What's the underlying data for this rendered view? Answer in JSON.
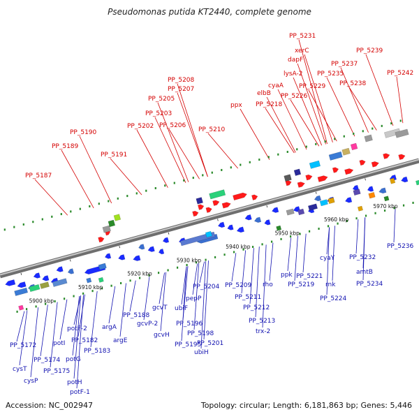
{
  "title": "Pseudomonas putida KT2440, complete genome",
  "footer": {
    "accession": "Accession: NC_002947",
    "topology": "Topology: circular; Length: 6,181,863 bp; Genes: 5,446"
  },
  "colors": {
    "forward_label": "#d40000",
    "reverse_label": "#1010b0",
    "backbone": "#8a8a8a",
    "forward_arrow": "#ff1a1a",
    "reverse_arrow": "#1a2bff",
    "tick": "#2a8a2a"
  },
  "ticks": [
    {
      "label": "5900 kbp"
    },
    {
      "label": "5910 kbp"
    },
    {
      "label": "5920 kbp"
    },
    {
      "label": "5930 kbp"
    },
    {
      "label": "5940 kbp"
    },
    {
      "label": "5950 kbp"
    },
    {
      "label": "5960 kbp"
    },
    {
      "label": "5970 kbp"
    }
  ],
  "forward_genes": [
    "PP_5187",
    "PP_5189",
    "PP_5190",
    "PP_5191",
    "PP_5202",
    "PP_5203",
    "PP_5205",
    "PP_5206",
    "PP_5207",
    "PP_5208",
    "PP_5210",
    "ppx",
    "PP_5218",
    "elbB",
    "cyaA",
    "lysA-2",
    "dapF",
    "xerC",
    "PP_5231",
    "PP_5226",
    "PP_5229",
    "PP_5235",
    "PP_5237",
    "PP_5238",
    "PP_5239",
    "PP_5242"
  ],
  "reverse_genes": [
    "PP_5172",
    "cysT",
    "cysP",
    "PP_5174",
    "PP_5175",
    "potI",
    "potG",
    "potH",
    "potF-2",
    "potF-1",
    "PP_5182",
    "PP_5183",
    "argA",
    "argE",
    "PP_5188",
    "gcvP-2",
    "gcvH",
    "gcvT",
    "PP_5195",
    "PP_5196",
    "ubiF",
    "PP_5198",
    "ubiH",
    "PP_5201",
    "pepP",
    "PP_5204",
    "PP_5209",
    "PP_5211",
    "PP_5212",
    "PP_5213",
    "trx-2",
    "rho",
    "ppk",
    "PP_5219",
    "PP_5221",
    "PP_5224",
    "rnk",
    "cyaY",
    "PP_5232",
    "amtB",
    "PP_5234",
    "PP_5236"
  ]
}
